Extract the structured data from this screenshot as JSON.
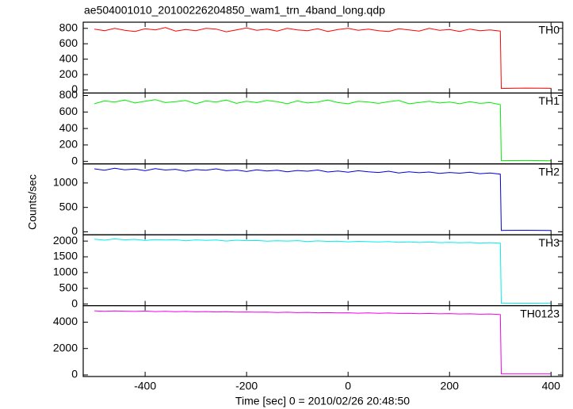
{
  "chart_data": {
    "type": "line",
    "title": "ae504001010_20100226204850_wam1_trn_4band_long.qdp",
    "xlabel": "Time [sec] 0 = 2010/02/26 20:48:50",
    "ylabel": "Counts/sec",
    "xlim": [
      -522,
      423
    ],
    "xticks": [
      -400,
      -200,
      0,
      200,
      400
    ],
    "x": [
      -500,
      -480,
      -460,
      -440,
      -420,
      -400,
      -380,
      -360,
      -340,
      -320,
      -300,
      -280,
      -260,
      -240,
      -220,
      -200,
      -180,
      -160,
      -140,
      -120,
      -100,
      -80,
      -60,
      -40,
      -20,
      0,
      20,
      40,
      60,
      80,
      100,
      120,
      140,
      160,
      180,
      200,
      220,
      240,
      260,
      280,
      300,
      302,
      350,
      400
    ],
    "series": [
      {
        "name": "TH0",
        "color": "#ff0000",
        "ylim": [
          -40,
          880
        ],
        "yticks": [
          0,
          200,
          400,
          600,
          800
        ],
        "values": [
          790,
          770,
          800,
          775,
          760,
          795,
          780,
          810,
          765,
          785,
          770,
          800,
          790,
          755,
          780,
          805,
          775,
          790,
          765,
          800,
          780,
          770,
          795,
          760,
          785,
          800,
          775,
          790,
          770,
          760,
          795,
          780,
          765,
          800,
          775,
          785,
          760,
          790,
          770,
          780,
          765,
          20,
          25,
          22
        ]
      },
      {
        "name": "TH1",
        "color": "#00ee00",
        "ylim": [
          -30,
          830
        ],
        "yticks": [
          0,
          200,
          400,
          600,
          800
        ],
        "values": [
          700,
          735,
          720,
          745,
          710,
          730,
          750,
          715,
          725,
          740,
          700,
          735,
          720,
          745,
          705,
          730,
          715,
          740,
          725,
          700,
          735,
          710,
          720,
          745,
          715,
          700,
          730,
          720,
          705,
          725,
          740,
          700,
          715,
          730,
          710,
          720,
          700,
          725,
          705,
          715,
          690,
          10,
          12,
          8
        ]
      },
      {
        "name": "TH2",
        "color": "#0000dd",
        "ylim": [
          -60,
          1390
        ],
        "yticks": [
          0,
          500,
          1000
        ],
        "values": [
          1290,
          1260,
          1300,
          1270,
          1285,
          1250,
          1295,
          1265,
          1280,
          1240,
          1275,
          1260,
          1290,
          1250,
          1265,
          1235,
          1270,
          1245,
          1260,
          1230,
          1255,
          1240,
          1265,
          1225,
          1245,
          1220,
          1250,
          1230,
          1215,
          1240,
          1205,
          1230,
          1210,
          1225,
          1195,
          1215,
          1200,
          1220,
          1190,
          1205,
          1180,
          30,
          32,
          30
        ]
      },
      {
        "name": "TH3",
        "color": "#00eeee",
        "ylim": [
          -50,
          2200
        ],
        "yticks": [
          0,
          500,
          1000,
          1500,
          2000
        ],
        "values": [
          2060,
          2030,
          2070,
          2040,
          2055,
          2020,
          2050,
          2035,
          2045,
          2010,
          2040,
          2025,
          2035,
          2000,
          2030,
          2015,
          2020,
          1995,
          2010,
          2000,
          2015,
          1985,
          2005,
          1990,
          1995,
          1975,
          1990,
          1980,
          1970,
          1985,
          1960,
          1975,
          1955,
          1970,
          1950,
          1960,
          1945,
          1955,
          1935,
          1950,
          1930,
          30,
          28,
          30
        ]
      },
      {
        "name": "TH0123",
        "color": "#ee00ee",
        "ylim": [
          -120,
          5250
        ],
        "yticks": [
          0,
          2000,
          4000
        ],
        "values": [
          4860,
          4820,
          4850,
          4830,
          4810,
          4840,
          4800,
          4820,
          4790,
          4810,
          4780,
          4800,
          4770,
          4790,
          4760,
          4770,
          4750,
          4760,
          4730,
          4750,
          4720,
          4740,
          4710,
          4720,
          4700,
          4710,
          4680,
          4700,
          4670,
          4690,
          4660,
          4670,
          4640,
          4660,
          4630,
          4650,
          4620,
          4630,
          4600,
          4620,
          4580,
          70,
          75,
          70
        ]
      }
    ]
  }
}
